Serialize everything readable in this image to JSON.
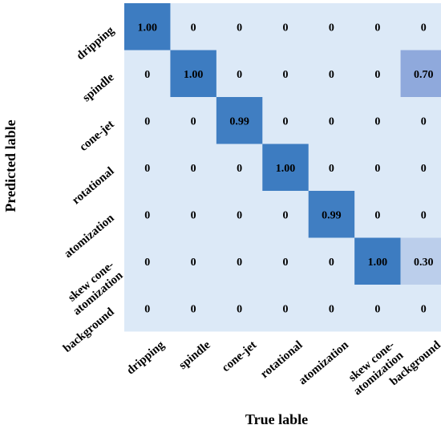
{
  "chart_data": {
    "type": "heatmap",
    "title": "",
    "xlabel": "True lable",
    "ylabel": "Predicted lable",
    "x_categories": [
      "dripping",
      "spindle",
      "cone-jet",
      "rotational",
      "atomization",
      "skew cone-\natomization",
      "background"
    ],
    "y_categories": [
      "dripping",
      "spindle",
      "cone-jet",
      "rotational",
      "atomization",
      "skew cone-\natomization",
      "background"
    ],
    "values": [
      [
        1.0,
        0,
        0,
        0,
        0,
        0,
        0
      ],
      [
        0,
        1.0,
        0,
        0,
        0,
        0,
        0.7
      ],
      [
        0,
        0,
        0.99,
        0,
        0,
        0,
        0
      ],
      [
        0,
        0,
        0,
        1.0,
        0,
        0,
        0
      ],
      [
        0,
        0,
        0,
        0,
        0.99,
        0,
        0
      ],
      [
        0,
        0,
        0,
        0,
        0,
        1.0,
        0.3
      ],
      [
        0,
        0,
        0,
        0,
        0,
        0,
        0
      ]
    ],
    "cell_labels": [
      [
        "1.00",
        "0",
        "0",
        "0",
        "0",
        "0",
        "0"
      ],
      [
        "0",
        "1.00",
        "0",
        "0",
        "0",
        "0",
        "0.70"
      ],
      [
        "0",
        "0",
        "0.99",
        "0",
        "0",
        "0",
        "0"
      ],
      [
        "0",
        "0",
        "0",
        "1.00",
        "0",
        "0",
        "0"
      ],
      [
        "0",
        "0",
        "0",
        "0",
        "0.99",
        "0",
        "0"
      ],
      [
        "0",
        "0",
        "0",
        "0",
        "0",
        "1.00",
        "0.30"
      ],
      [
        "0",
        "0",
        "0",
        "0",
        "0",
        "0",
        "0"
      ]
    ],
    "colors": {
      "low": "#dce9f7",
      "mid": "#8fa9dc",
      "high": "#3d7cc1"
    }
  }
}
